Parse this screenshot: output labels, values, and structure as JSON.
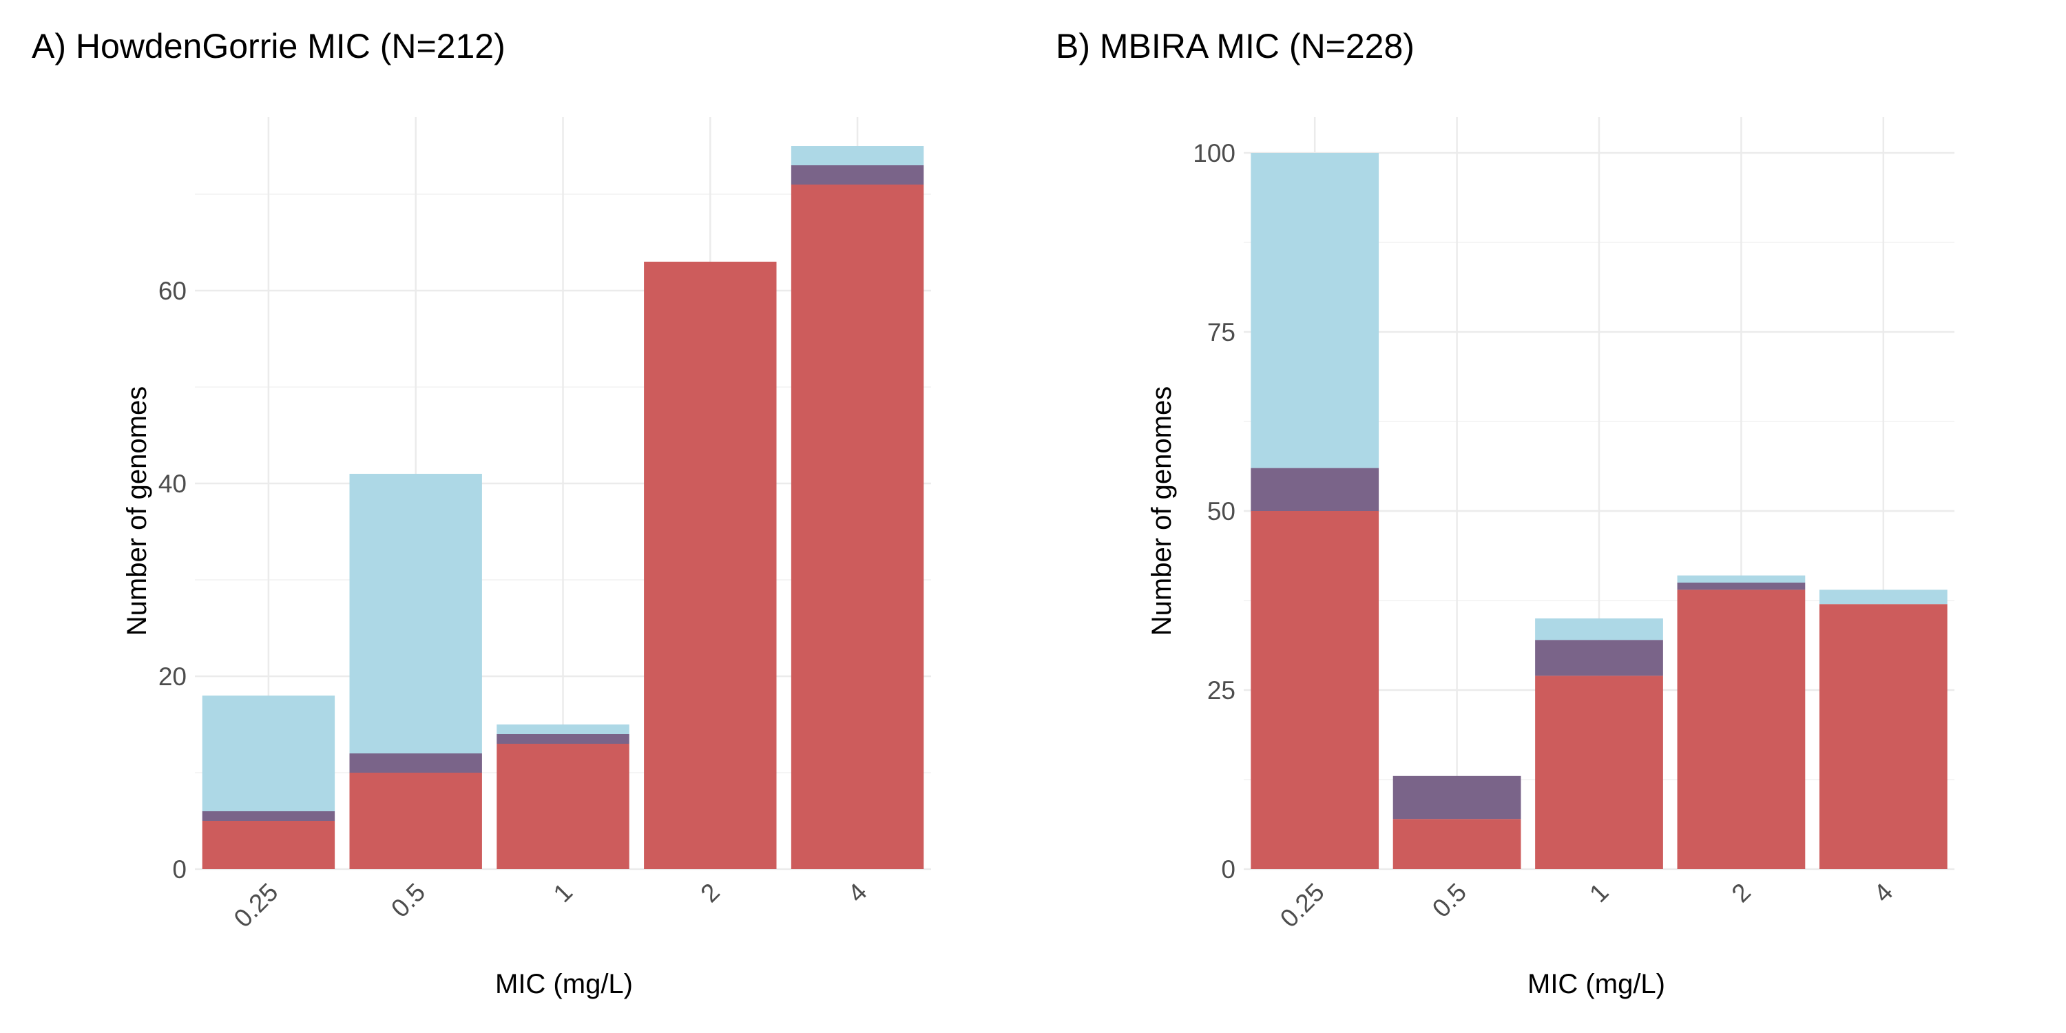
{
  "colors": {
    "red": "#CD5C5C",
    "purple": "#7A6489",
    "blue": "#ADD8E6",
    "grid_major": "#EBEBEB",
    "grid_minor": "#F5F5F5"
  },
  "chart_data": [
    {
      "type": "bar",
      "stacked": true,
      "title": "A) HowdenGorrie MIC (N=212)",
      "xlabel": "MIC (mg/L)",
      "ylabel": "Number of genomes",
      "categories": [
        "0.25",
        "0.5",
        "1",
        "2",
        "4"
      ],
      "ylim": [
        0,
        78
      ],
      "yticks": [
        0,
        20,
        40,
        60
      ],
      "grid": true,
      "series": [
        {
          "color": "#CD5C5C",
          "values": [
            5,
            10,
            13,
            63,
            71
          ]
        },
        {
          "color": "#7A6489",
          "values": [
            1,
            2,
            1,
            0,
            2
          ]
        },
        {
          "color": "#ADD8E6",
          "values": [
            12,
            29,
            1,
            0,
            2
          ]
        }
      ]
    },
    {
      "type": "bar",
      "stacked": true,
      "title": "B) MBIRA MIC (N=228)",
      "xlabel": "MIC (mg/L)",
      "ylabel": "Number of genomes",
      "categories": [
        "0.25",
        "0.5",
        "1",
        "2",
        "4"
      ],
      "ylim": [
        0,
        105
      ],
      "yticks": [
        0,
        25,
        50,
        75,
        100
      ],
      "grid": true,
      "series": [
        {
          "color": "#CD5C5C",
          "values": [
            50,
            7,
            27,
            39,
            37
          ]
        },
        {
          "color": "#7A6489",
          "values": [
            6,
            6,
            5,
            1,
            0
          ]
        },
        {
          "color": "#ADD8E6",
          "values": [
            44,
            0,
            3,
            1,
            2
          ]
        }
      ]
    }
  ]
}
